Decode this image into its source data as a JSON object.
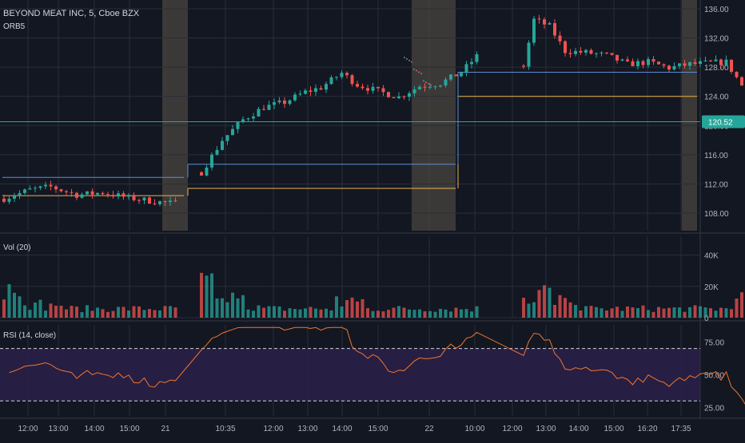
{
  "window": {
    "symbol_title": "BEYOND MEAT INC, 5, Cboe BZX",
    "orb_label": "ORB5",
    "volume_label": "Vol (20)",
    "rsi_label": "RSI (14, close)"
  },
  "colors": {
    "background": "#131722",
    "grid": "#2a2e39",
    "up": "#26a69a",
    "down": "#ef5350",
    "premarket_shade": "#4a4540",
    "orb_high": "#5b8fd6",
    "orb_low": "#f0b24b",
    "last_price_line": "#26a69a",
    "rsi_line": "#f2752d",
    "rsi_band": "#2a1f47"
  },
  "chart_data": [
    {
      "type": "candlestick",
      "title": "BEYOND MEAT INC, 5, Cboe BZX",
      "ylim": [
        105.6,
        137.2
      ],
      "y_ticks": [
        "136.00",
        "132.00",
        "128.00",
        "124.00",
        "120.00",
        "116.00",
        "112.00",
        "108.00"
      ],
      "last_price": "120.52",
      "x_tick_labels": [
        "12:00",
        "13:00",
        "14:00",
        "15:00",
        "21",
        "10:35",
        "12:00",
        "13:00",
        "14:00",
        "15:00",
        "22",
        "10:00",
        "12:00",
        "13:00",
        "14:00",
        "15:00",
        "16:20",
        "17:35"
      ],
      "segments": [
        {
          "day": "20",
          "start": 0,
          "end": 33,
          "start_price": 110.0,
          "path": [
            [
              0,
              110.0
            ],
            [
              5,
              111.2
            ],
            [
              9,
              111.6
            ],
            [
              14,
              110.5
            ],
            [
              19,
              110.8
            ],
            [
              24,
              110.1
            ],
            [
              29,
              109.6
            ],
            [
              33,
              109.3
            ]
          ],
          "orb_high": 112.9,
          "orb_low": 110.4
        },
        {
          "day": "21",
          "start": 38,
          "end": 91,
          "start_price": 113.6,
          "path": [
            [
              0,
              113.6
            ],
            [
              4,
              118.0
            ],
            [
              8,
              120.8
            ],
            [
              12,
              122.5
            ],
            [
              16,
              123.2
            ],
            [
              20,
              124.6
            ],
            [
              23,
              125.2
            ],
            [
              27,
              127.2
            ],
            [
              30,
              125.6
            ],
            [
              34,
              124.7
            ],
            [
              38,
              123.9
            ],
            [
              42,
              125.4
            ],
            [
              46,
              125.8
            ],
            [
              50,
              127.3
            ],
            [
              53,
              129.5
            ],
            [
              53,
              129.7
            ]
          ],
          "orb_high": 114.7,
          "orb_low": 111.4
        },
        {
          "day": "22",
          "start": 100,
          "end": 147,
          "start_price": 128.2,
          "path": [
            [
              0,
              128.2
            ],
            [
              2,
              134.5
            ],
            [
              5,
              133.6
            ],
            [
              8,
              130.2
            ],
            [
              12,
              130.0
            ],
            [
              16,
              129.6
            ],
            [
              20,
              128.4
            ],
            [
              24,
              128.7
            ],
            [
              28,
              127.9
            ],
            [
              32,
              128.4
            ],
            [
              36,
              128.6
            ],
            [
              39,
              128.7
            ],
            [
              42,
              125.5
            ],
            [
              44,
              122.3
            ],
            [
              46,
              121.5
            ],
            [
              49,
              122.6
            ],
            [
              47,
              122.0
            ]
          ],
          "orb_high": 127.3,
          "orb_low": 124.0
        }
      ]
    },
    {
      "type": "bar",
      "title": "Vol (20)",
      "ylim": [
        0,
        52000
      ],
      "y_ticks": [
        "40K",
        "20K",
        "0"
      ]
    },
    {
      "type": "line",
      "title": "RSI (14, close)",
      "ylim": [
        18,
        88
      ],
      "y_ticks": [
        "75.00",
        "50.00",
        "25.00"
      ],
      "bands": [
        30,
        70
      ]
    }
  ]
}
